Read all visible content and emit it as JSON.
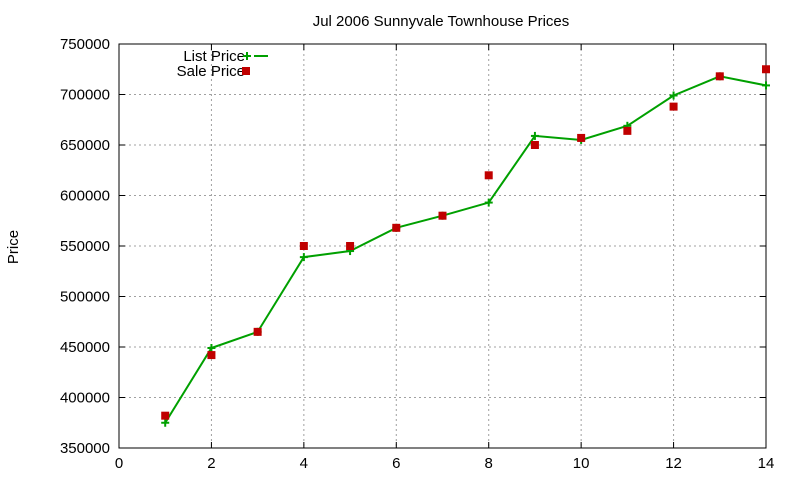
{
  "chart_data": {
    "type": "line",
    "title": "Jul 2006 Sunnyvale Townhouse Prices",
    "xlabel": "",
    "ylabel": "Price",
    "xlim": [
      0,
      14
    ],
    "ylim": [
      350000,
      750000
    ],
    "x_ticks": [
      "0",
      "2",
      "4",
      "6",
      "8",
      "10",
      "12",
      "14"
    ],
    "x_tick_values": [
      0,
      2,
      4,
      6,
      8,
      10,
      12,
      14
    ],
    "y_ticks": [
      "350000",
      "400000",
      "450000",
      "500000",
      "550000",
      "600000",
      "650000",
      "700000",
      "750000"
    ],
    "y_tick_values": [
      350000,
      400000,
      450000,
      500000,
      550000,
      600000,
      650000,
      700000,
      750000
    ],
    "grid": true,
    "legend_position": "top-left",
    "series": [
      {
        "name": "List Price",
        "style": "linespoints",
        "marker": "plus",
        "color": "#00a000",
        "x": [
          1,
          2,
          3,
          4,
          5,
          6,
          7,
          8,
          9,
          10,
          11,
          12,
          13,
          14
        ],
        "values": [
          375000,
          449000,
          465000,
          539000,
          545000,
          568000,
          580000,
          593000,
          659000,
          655000,
          669000,
          699000,
          718000,
          709000
        ]
      },
      {
        "name": "Sale Price",
        "style": "points",
        "marker": "square",
        "color": "#c00000",
        "x": [
          1,
          2,
          3,
          4,
          5,
          6,
          7,
          8,
          9,
          10,
          11,
          12,
          13,
          14
        ],
        "values": [
          382000,
          442000,
          465000,
          550000,
          550000,
          568000,
          580000,
          620000,
          650000,
          657000,
          664000,
          688000,
          718000,
          725000
        ]
      }
    ]
  }
}
